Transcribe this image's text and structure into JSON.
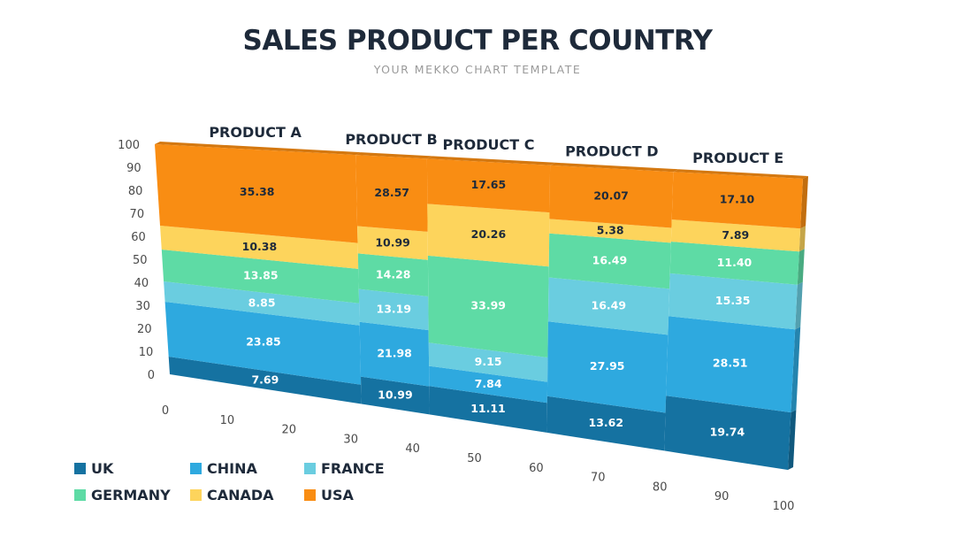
{
  "title": "SALES PRODUCT PER COUNTRY",
  "subtitle": "YOUR MEKKO CHART TEMPLATE",
  "colors": {
    "UK": "#1572a1",
    "CHINA": "#2ea9df",
    "FRANCE": "#6acde0",
    "GERMANY": "#5edba5",
    "CANADA": "#fdd45c",
    "USA": "#f98d13"
  },
  "legend": [
    {
      "label": "UK",
      "color": "#1572a1"
    },
    {
      "label": "CHINA",
      "color": "#2ea9df"
    },
    {
      "label": "FRANCE",
      "color": "#6acde0"
    },
    {
      "label": "GERMANY",
      "color": "#5edba5"
    },
    {
      "label": "CANADA",
      "color": "#fdd45c"
    },
    {
      "label": "USA",
      "color": "#f98d13"
    }
  ],
  "chart_data": {
    "type": "mekko",
    "title": "SALES PRODUCT PER COUNTRY",
    "subtitle": "YOUR MEKKO CHART TEMPLATE",
    "x_ticks": [
      "0",
      "10",
      "20",
      "30",
      "40",
      "50",
      "60",
      "70",
      "80",
      "90",
      "100"
    ],
    "y_ticks": [
      "0",
      "10",
      "20",
      "30",
      "40",
      "50",
      "60",
      "70",
      "80",
      "90",
      "100"
    ],
    "xlim": [
      0,
      100
    ],
    "ylim": [
      0,
      100
    ],
    "series_names": [
      "UK",
      "CHINA",
      "FRANCE",
      "GERMANY",
      "CANADA",
      "USA"
    ],
    "products": [
      {
        "name": "PRODUCT A",
        "x_start": 0,
        "x_end": 31,
        "values": [
          7.69,
          23.85,
          8.85,
          13.85,
          10.38,
          35.38
        ]
      },
      {
        "name": "PRODUCT B",
        "x_start": 31,
        "x_end": 42,
        "values": [
          10.99,
          21.98,
          13.19,
          14.28,
          10.99,
          28.57
        ]
      },
      {
        "name": "PRODUCT C",
        "x_start": 42,
        "x_end": 61,
        "values": [
          11.11,
          7.84,
          9.15,
          33.99,
          20.26,
          17.65
        ]
      },
      {
        "name": "PRODUCT D",
        "x_start": 61,
        "x_end": 80,
        "values": [
          13.62,
          27.95,
          16.49,
          16.49,
          5.38,
          20.07
        ]
      },
      {
        "name": "PRODUCT E",
        "x_start": 80,
        "x_end": 100,
        "values": [
          19.74,
          28.51,
          15.35,
          11.4,
          7.89,
          17.1
        ]
      }
    ],
    "value_labels": [
      [
        "7.69",
        "23.85",
        "8.85",
        "13.85",
        "10.38",
        "35.38"
      ],
      [
        "10.99",
        "21.98",
        "13.19",
        "14.28",
        "10.99",
        "28.57"
      ],
      [
        "11.11",
        "7.84",
        "9.15",
        "33.99",
        "20.26",
        "17.65"
      ],
      [
        "13.62",
        "27.95",
        "16.49",
        "16.49",
        "5.38",
        "20.07"
      ],
      [
        "19.74",
        "28.51",
        "15.35",
        "11.40",
        "7.89",
        "17.10"
      ]
    ]
  }
}
